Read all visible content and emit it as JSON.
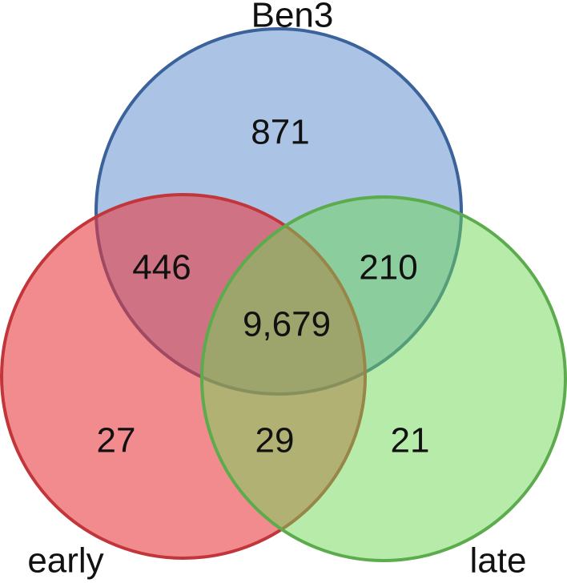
{
  "sets": [
    {
      "label": "Ben3"
    },
    {
      "label": "early"
    },
    {
      "label": "late"
    }
  ],
  "regions": {
    "ben3_only": "871",
    "ben3_early": "446",
    "ben3_late": "210",
    "all": "9,679",
    "early_only": "27",
    "early_late": "29",
    "late_only": "21"
  }
}
